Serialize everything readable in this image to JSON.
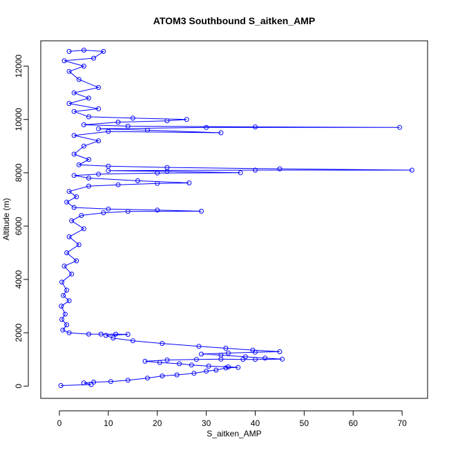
{
  "chart_data": {
    "type": "scatter",
    "title": "ATOM3 Southbound S_aitken_AMP",
    "xlabel": "S_aitken_AMP",
    "ylabel": "Altitude (m)",
    "xlim": [
      -3.8,
      75.2
    ],
    "ylim": [
      -460,
      12950
    ],
    "x_ticks": [
      0,
      10,
      20,
      30,
      40,
      50,
      60,
      70
    ],
    "y_ticks": [
      0,
      2000,
      4000,
      6000,
      8000,
      10000,
      12000
    ],
    "grid": false,
    "legend": "none",
    "series_color": "#0000ff",
    "marker": "open-circle",
    "connect_points": true,
    "series": [
      {
        "values": [
          [
            0.3,
            20
          ],
          [
            6.5,
            60
          ],
          [
            5.0,
            120
          ],
          [
            7.0,
            150
          ],
          [
            10.5,
            170
          ],
          [
            14.0,
            220
          ],
          [
            18.0,
            300
          ],
          [
            21.0,
            380
          ],
          [
            24.0,
            420
          ],
          [
            27.5,
            480
          ],
          [
            30.0,
            560
          ],
          [
            32.0,
            600
          ],
          [
            34.0,
            680
          ],
          [
            36.5,
            700
          ],
          [
            34.5,
            720
          ],
          [
            30.5,
            750
          ],
          [
            27.0,
            790
          ],
          [
            24.5,
            840
          ],
          [
            20.5,
            880
          ],
          [
            17.5,
            930
          ],
          [
            22.0,
            980
          ],
          [
            28.0,
            1000
          ],
          [
            33.0,
            1010
          ],
          [
            37.5,
            1000
          ],
          [
            40.0,
            1000
          ],
          [
            45.5,
            1010
          ],
          [
            42.0,
            1050
          ],
          [
            38.0,
            1100
          ],
          [
            33.0,
            1160
          ],
          [
            29.0,
            1200
          ],
          [
            34.5,
            1240
          ],
          [
            40.0,
            1270
          ],
          [
            45.0,
            1290
          ],
          [
            39.5,
            1350
          ],
          [
            34.0,
            1420
          ],
          [
            28.5,
            1490
          ],
          [
            21.0,
            1600
          ],
          [
            15.0,
            1700
          ],
          [
            11.0,
            1800
          ],
          [
            9.5,
            1900
          ],
          [
            14.0,
            1940
          ],
          [
            11.5,
            1950
          ],
          [
            8.5,
            1950
          ],
          [
            6.0,
            1950
          ],
          [
            2.0,
            2000
          ],
          [
            0.7,
            2100
          ],
          [
            1.5,
            2300
          ],
          [
            0.5,
            2500
          ],
          [
            1.2,
            2700
          ],
          [
            0.4,
            3000
          ],
          [
            2.0,
            3200
          ],
          [
            0.8,
            3400
          ],
          [
            1.5,
            3600
          ],
          [
            0.5,
            3900
          ],
          [
            2.5,
            4200
          ],
          [
            1.0,
            4500
          ],
          [
            3.5,
            4700
          ],
          [
            1.5,
            5000
          ],
          [
            4.0,
            5300
          ],
          [
            2.0,
            5600
          ],
          [
            5.0,
            5900
          ],
          [
            2.5,
            6200
          ],
          [
            4.5,
            6400
          ],
          [
            9.0,
            6500
          ],
          [
            14.0,
            6550
          ],
          [
            29.0,
            6560
          ],
          [
            20.0,
            6600
          ],
          [
            10.0,
            6640
          ],
          [
            3.0,
            6700
          ],
          [
            1.5,
            6900
          ],
          [
            3.5,
            7100
          ],
          [
            2.0,
            7300
          ],
          [
            6.0,
            7500
          ],
          [
            12.0,
            7550
          ],
          [
            20.0,
            7600
          ],
          [
            26.5,
            7620
          ],
          [
            16.0,
            7700
          ],
          [
            6.0,
            7800
          ],
          [
            3.0,
            7900
          ],
          [
            8.0,
            7950
          ],
          [
            20.0,
            7990
          ],
          [
            37.0,
            8000
          ],
          [
            22.0,
            8050
          ],
          [
            10.0,
            8080
          ],
          [
            40.0,
            8100
          ],
          [
            72.0,
            8100
          ],
          [
            45.0,
            8150
          ],
          [
            22.0,
            8200
          ],
          [
            10.0,
            8250
          ],
          [
            4.0,
            8300
          ],
          [
            6.0,
            8500
          ],
          [
            3.0,
            8700
          ],
          [
            5.0,
            9000
          ],
          [
            8.0,
            9200
          ],
          [
            3.0,
            9400
          ],
          [
            10.0,
            9550
          ],
          [
            33.0,
            9500
          ],
          [
            18.0,
            9600
          ],
          [
            8.0,
            9650
          ],
          [
            30.0,
            9700
          ],
          [
            69.5,
            9700
          ],
          [
            40.0,
            9720
          ],
          [
            14.0,
            9750
          ],
          [
            5.0,
            9800
          ],
          [
            12.0,
            9900
          ],
          [
            22.0,
            9950
          ],
          [
            26.0,
            10000
          ],
          [
            15.0,
            10050
          ],
          [
            6.0,
            10100
          ],
          [
            3.0,
            10300
          ],
          [
            8.0,
            10400
          ],
          [
            2.0,
            10600
          ],
          [
            6.0,
            10800
          ],
          [
            3.0,
            11000
          ],
          [
            8.0,
            11200
          ],
          [
            4.0,
            11500
          ],
          [
            2.0,
            11800
          ],
          [
            5.0,
            12000
          ],
          [
            1.0,
            12200
          ],
          [
            7.0,
            12300
          ],
          [
            9.0,
            12550
          ],
          [
            5.0,
            12600
          ],
          [
            2.0,
            12550
          ]
        ]
      }
    ]
  }
}
